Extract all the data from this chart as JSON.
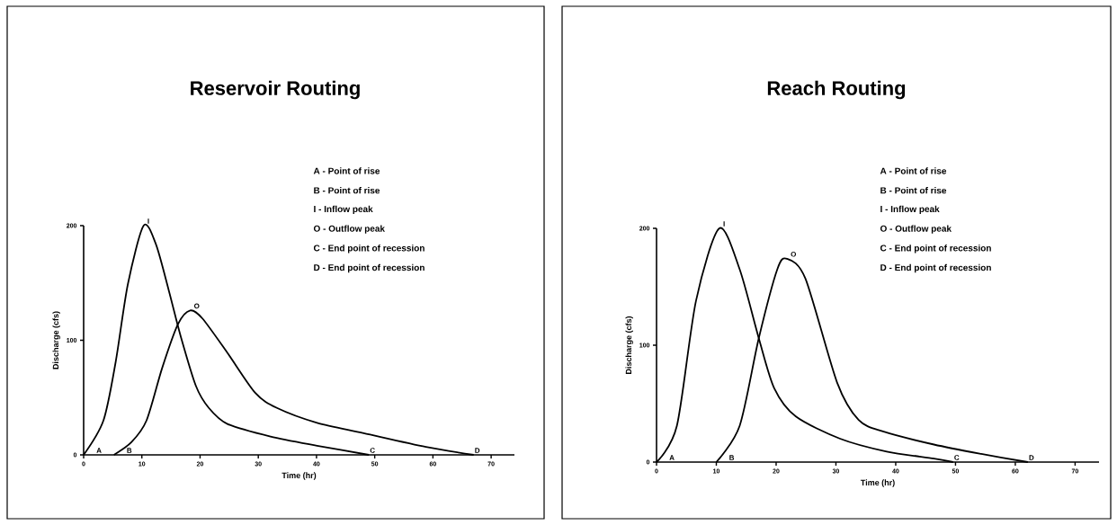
{
  "chart_data": [
    {
      "type": "line",
      "title": "Reservoir Routing",
      "xlabel": "Time (hr)",
      "ylabel": "Discharge (cfs)",
      "xlim": [
        0,
        74
      ],
      "xticks": [
        0,
        10,
        20,
        30,
        40,
        50,
        60,
        70
      ],
      "ylim": [
        0,
        200
      ],
      "yticks": [
        0,
        100,
        200
      ],
      "grid": false,
      "marker": "none",
      "series": [
        {
          "color": "#000000",
          "x": [
            0,
            3.4,
            5.5,
            7.6,
            10.3,
            12.4,
            14.6,
            16.7,
            19.3,
            21.5,
            24.7,
            32.1,
            40.1,
            49
          ],
          "values": [
            0,
            30,
            81,
            149,
            200,
            184,
            144,
            103,
            60,
            41,
            27,
            16,
            8,
            0
          ]
        },
        {
          "color": "#000000",
          "x": [
            5.2,
            8.2,
            10.8,
            13.5,
            16.2,
            18.3,
            20.4,
            24.7,
            29.5,
            33.2,
            40.1,
            48.1,
            58.8,
            67
          ],
          "values": [
            0,
            11,
            30,
            76,
            114,
            126,
            119,
            89,
            54,
            41,
            28,
            19,
            7,
            0
          ]
        }
      ],
      "annotations": [
        "A - Point of rise",
        "B - Point of rise",
        "I -  Inflow peak",
        "O - Outflow peak",
        "C - End point of recession",
        "D - End point of recession",
        "A",
        "B",
        "I",
        "O",
        "C",
        "D"
      ]
    },
    {
      "type": "line",
      "title": "Reach Routing",
      "xlabel": "Time (hr)",
      "ylabel": "Discharge (cfs)",
      "xlim": [
        0,
        74
      ],
      "xticks": [
        0,
        10,
        20,
        30,
        40,
        50,
        60,
        70
      ],
      "ylim": [
        0,
        200
      ],
      "yticks": [
        0,
        100,
        200
      ],
      "grid": false,
      "marker": "none",
      "series": [
        {
          "color": "#000000",
          "x": [
            0,
            3.4,
            6.6,
            10.5,
            13.9,
            17.1,
            19.7,
            23.3,
            30.7,
            38.5,
            46.4,
            49.6
          ],
          "values": [
            0,
            31,
            138,
            200,
            165,
            106,
            63,
            39,
            20,
            9,
            3,
            0
          ]
        },
        {
          "color": "#000000",
          "x": [
            10,
            13.9,
            17.1,
            20.2,
            21.8,
            24.9,
            30.2,
            33.8,
            38,
            46.4,
            54.3,
            62.1
          ],
          "values": [
            0,
            31,
            106,
            165,
            174,
            157,
            68,
            36,
            26,
            15,
            7,
            0
          ]
        }
      ],
      "annotations": [
        "A - Point of rise",
        "B - Point of rise",
        "I -  Inflow peak",
        "O - Outflow peak",
        "C - End point of recession",
        "D - End point of recession",
        "A",
        "B",
        "I",
        "O",
        "C",
        "D"
      ]
    }
  ]
}
